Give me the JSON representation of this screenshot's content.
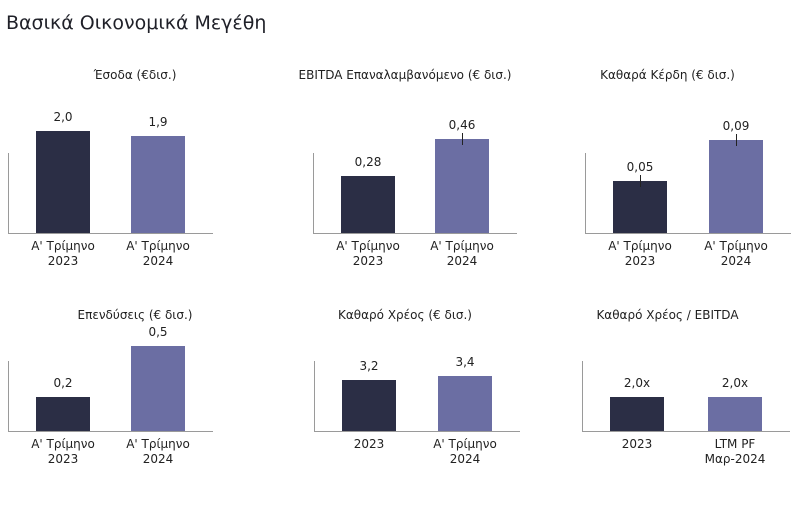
{
  "title": "Βασικά Οικονομικά Μεγέθη",
  "colors": {
    "dark": "#2b2e45",
    "accent": "#6b6ea3"
  },
  "chart_data": [
    {
      "type": "bar",
      "title": "Έσοδα (€δισ.)",
      "categories": [
        "Α' Τρίμηνο\n2023",
        "Α' Τρίμηνο\n2024"
      ],
      "values": [
        2.0,
        1.9
      ],
      "labels": [
        "2,0",
        "1,9"
      ],
      "ylim": [
        0,
        2.3
      ]
    },
    {
      "type": "bar",
      "title": "EBITDA Επαναλαμβανόμενο (€ δισ.)",
      "categories": [
        "Α' Τρίμηνο\n2023",
        "Α' Τρίμηνο\n2024"
      ],
      "values": [
        0.28,
        0.46
      ],
      "labels": [
        "0,28",
        "0,46"
      ],
      "ylim": [
        0,
        0.57
      ]
    },
    {
      "type": "bar",
      "title": "Καθαρά Κέρδη (€ δισ.)",
      "categories": [
        "Α' Τρίμηνο\n2023",
        "Α' Τρίμηνο\n2024"
      ],
      "values": [
        0.05,
        0.09
      ],
      "labels": [
        "0,05",
        "0,09"
      ],
      "ylim": [
        0,
        0.113
      ]
    },
    {
      "type": "bar",
      "title": "Επενδύσεις (€ δισ.)",
      "categories": [
        "Α' Τρίμηνο\n2023",
        "Α' Τρίμηνο\n2024"
      ],
      "values": [
        0.2,
        0.5
      ],
      "labels": [
        "0,2",
        "0,5"
      ],
      "ylim": [
        0,
        0.55
      ]
    },
    {
      "type": "bar",
      "title": "Καθαρό Χρέος (€ δισ.)",
      "categories": [
        "2023",
        "Α' Τρίμηνο\n2024"
      ],
      "values": [
        3.2,
        3.4
      ],
      "labels": [
        "3,2",
        "3,4"
      ],
      "ylim": [
        0,
        5.8
      ]
    },
    {
      "type": "bar",
      "title": "Καθαρό Χρέος / EBITDA",
      "categories": [
        "2023",
        "LTM PF\nΜαρ-2024"
      ],
      "values": [
        2.0,
        2.0
      ],
      "labels": [
        "2,0x",
        "2,0x"
      ],
      "ylim": [
        0,
        5.5
      ]
    }
  ]
}
